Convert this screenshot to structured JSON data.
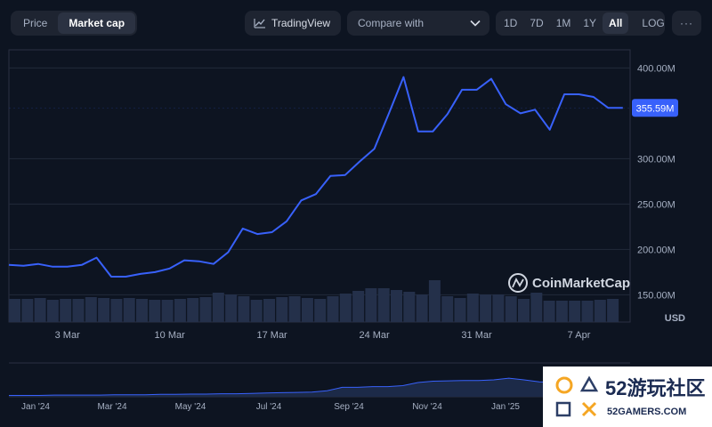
{
  "toolbar": {
    "view_tabs": [
      "Price",
      "Market cap"
    ],
    "active_view": "Market cap",
    "tradingview_label": "TradingView",
    "compare_placeholder": "Compare with",
    "ranges": [
      "1D",
      "7D",
      "1M",
      "1Y",
      "All"
    ],
    "active_range": "All",
    "log_label": "LOG",
    "more_label": "···"
  },
  "chart": {
    "currency_label": "USD",
    "watermark": "CoinMarketCap",
    "current_value_label": "355.59M",
    "colors": {
      "line": "#3861fb",
      "volume": "#24304a",
      "label_bg": "#3861fb"
    }
  },
  "navigator": {
    "labels": [
      "Jan '24",
      "Mar '24",
      "May '24",
      "Jul '24",
      "Sep '24",
      "Nov '24",
      "Jan '25"
    ]
  },
  "overlay_logo": {
    "text_cn": "52游玩社区",
    "text_en": "52GAMERS.COM"
  },
  "chart_data": {
    "type": "line",
    "ylabel": "",
    "xlabel": "",
    "yticks": [
      "150.00M",
      "200.00M",
      "250.00M",
      "300.00M",
      "355.59M",
      "400.00M"
    ],
    "y_tick_values": [
      150,
      200,
      250,
      300,
      400
    ],
    "xticks": [
      "3 Mar",
      "10 Mar",
      "17 Mar",
      "24 Mar",
      "31 Mar",
      "7 Apr"
    ],
    "ylim": [
      120,
      420
    ],
    "x_unit": "days",
    "x_tick_positions": [
      4,
      11,
      18,
      25,
      32,
      39
    ],
    "series": [
      {
        "name": "",
        "x": [
          0,
          1,
          2,
          3,
          4,
          5,
          6,
          7,
          8,
          9,
          10,
          11,
          12,
          13,
          14,
          15,
          16,
          17,
          18,
          19,
          20,
          21,
          22,
          23,
          24,
          25,
          26,
          27,
          28,
          29,
          30,
          31,
          32,
          33,
          34,
          35,
          36,
          37,
          38,
          39,
          40,
          41,
          42
        ],
        "values": [
          183,
          182,
          184,
          181,
          181,
          183,
          191,
          170,
          170,
          173,
          175,
          179,
          188,
          187,
          184,
          197,
          223,
          217,
          219,
          231,
          254,
          261,
          281,
          282,
          297,
          311,
          350,
          390,
          330,
          330,
          349,
          376,
          376,
          388,
          360,
          350,
          354,
          332,
          371,
          371,
          368,
          356,
          356
        ]
      }
    ],
    "volume": [
      26,
      26,
      27,
      25,
      26,
      26,
      28,
      27,
      26,
      27,
      26,
      25,
      25,
      26,
      27,
      28,
      33,
      31,
      29,
      25,
      26,
      28,
      29,
      27,
      26,
      29,
      32,
      35,
      38,
      38,
      36,
      34,
      31,
      47,
      29,
      27,
      32,
      31,
      31,
      29,
      26,
      33,
      24,
      24,
      24,
      24,
      25,
      26,
      26
    ],
    "volume_x_start": 0,
    "volume_x_step": 0.875,
    "navigator_values": [
      0.04,
      0.04,
      0.04,
      0.05,
      0.05,
      0.05,
      0.05,
      0.06,
      0.06,
      0.06,
      0.07,
      0.07,
      0.08,
      0.08,
      0.09,
      0.09,
      0.1,
      0.11,
      0.12,
      0.13,
      0.14,
      0.18,
      0.28,
      0.28,
      0.3,
      0.3,
      0.33,
      0.42,
      0.46,
      0.47,
      0.48,
      0.48,
      0.5,
      0.55,
      0.5,
      0.44,
      0.43,
      0.42,
      0.4,
      0.42,
      0.8,
      0.85
    ]
  }
}
